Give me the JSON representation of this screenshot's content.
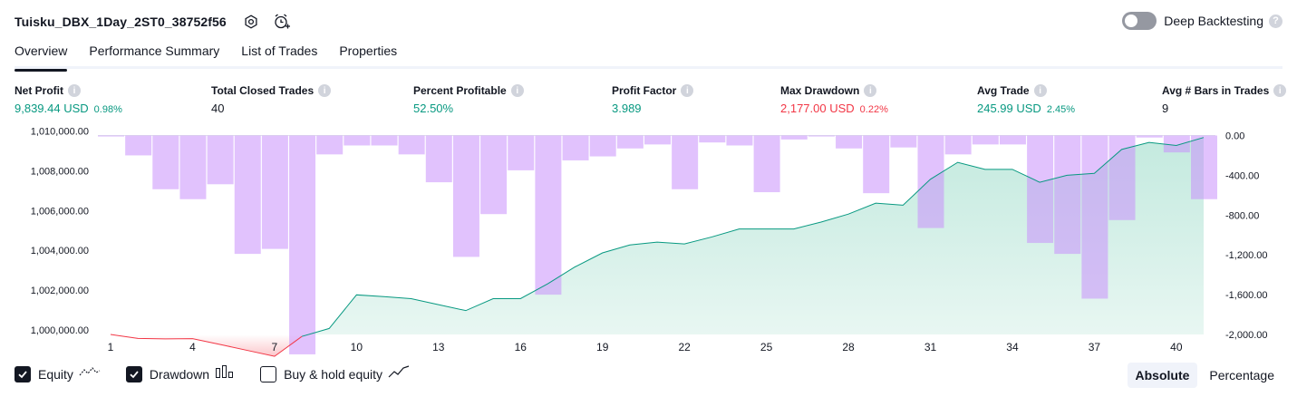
{
  "header": {
    "strategy_name": "Tuisku_DBX_1Day_2ST0_38752f56",
    "settings_icon": "settings-icon",
    "alert_icon": "alarm-add-icon",
    "deep_backtesting_label": "Deep Backtesting",
    "deep_backtesting_enabled": false,
    "help_glyph": "?"
  },
  "tabs": [
    {
      "label": "Overview",
      "active": true
    },
    {
      "label": "Performance Summary",
      "active": false
    },
    {
      "label": "List of Trades",
      "active": false
    },
    {
      "label": "Properties",
      "active": false
    }
  ],
  "stats": {
    "info_glyph": "i",
    "net_profit": {
      "title": "Net Profit",
      "value": "9,839.44 USD",
      "pct": "0.98%"
    },
    "total_closed_trades": {
      "title": "Total Closed Trades",
      "value": "40"
    },
    "percent_profitable": {
      "title": "Percent Profitable",
      "value": "52.50%"
    },
    "profit_factor": {
      "title": "Profit Factor",
      "value": "3.989"
    },
    "max_drawdown": {
      "title": "Max Drawdown",
      "value": "2,177.00 USD",
      "pct": "0.22%"
    },
    "avg_trade": {
      "title": "Avg Trade",
      "value": "245.99 USD",
      "pct": "2.45%"
    },
    "avg_bars": {
      "title": "Avg # Bars in Trades",
      "value": "9"
    }
  },
  "colors": {
    "green": "#089981",
    "red": "#f23645",
    "drawdown_bar": "#dcbcfc",
    "equity_area": "#dff4ee"
  },
  "chart_data": {
    "type": "area",
    "x": [
      1,
      2,
      3,
      4,
      5,
      6,
      7,
      8,
      9,
      10,
      11,
      12,
      13,
      14,
      15,
      16,
      17,
      18,
      19,
      20,
      21,
      22,
      23,
      24,
      25,
      26,
      27,
      28,
      29,
      30,
      31,
      32,
      33,
      34,
      35,
      36,
      37,
      38,
      39,
      40,
      41
    ],
    "xticks": [
      "1",
      "4",
      "7",
      "10",
      "13",
      "16",
      "19",
      "22",
      "25",
      "28",
      "31",
      "34",
      "37",
      "40"
    ],
    "left_axis": {
      "ticks": [
        "1,010,000.00",
        "1,008,000.00",
        "1,006,000.00",
        "1,004,000.00",
        "1,002,000.00",
        "1,000,000.00"
      ],
      "range": [
        999000,
        1010200
      ]
    },
    "right_axis": {
      "ticks": [
        "0.00",
        "-400.00",
        "-800.00",
        "-1,200.00",
        "-1,600.00",
        "-2,000.00"
      ],
      "range": [
        -2200,
        0
      ]
    },
    "series": [
      {
        "name": "Equity",
        "axis": "left",
        "values": [
          1000000,
          999800,
          999780,
          999790,
          999500,
          999200,
          998900,
          999900,
          1000300,
          1001990,
          1001900,
          1001800,
          1001500,
          1001200,
          1001800,
          1001800,
          1002550,
          1003400,
          1004100,
          1004500,
          1004640,
          1004550,
          1004900,
          1005300,
          1005300,
          1005300,
          1005650,
          1006050,
          1006600,
          1006500,
          1007800,
          1008650,
          1008300,
          1008300,
          1007650,
          1008000,
          1008100,
          1009300,
          1009650,
          1009500,
          1009900
        ]
      },
      {
        "name": "Drawdown",
        "axis": "right",
        "values": [
          -10,
          -200,
          -540,
          -640,
          -490,
          -1190,
          -1140,
          -2200,
          -190,
          -100,
          -100,
          -190,
          -470,
          -1220,
          -790,
          -350,
          -1600,
          -250,
          -210,
          -130,
          -90,
          -540,
          -70,
          -100,
          -570,
          -40,
          -10,
          -130,
          -580,
          -120,
          -930,
          -190,
          -90,
          -90,
          -1080,
          -1190,
          -1640,
          -850,
          -20,
          -170,
          -640
        ]
      }
    ]
  },
  "legend": {
    "equity": {
      "label": "Equity",
      "checked": true
    },
    "drawdown": {
      "label": "Drawdown",
      "checked": true
    },
    "buy_hold": {
      "label": "Buy & hold equity",
      "checked": false
    }
  },
  "scale": {
    "absolute": "Absolute",
    "percentage": "Percentage",
    "selected": "absolute"
  }
}
